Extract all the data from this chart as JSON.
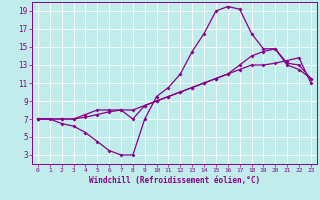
{
  "xlabel": "Windchill (Refroidissement éolien,°C)",
  "bg_color": "#c0ecec",
  "grid_color": "#ffffff",
  "line_color": "#880088",
  "xlim": [
    -0.5,
    23.5
  ],
  "ylim": [
    2,
    20
  ],
  "xticks": [
    0,
    1,
    2,
    3,
    4,
    5,
    6,
    7,
    8,
    9,
    10,
    11,
    12,
    13,
    14,
    15,
    16,
    17,
    18,
    19,
    20,
    21,
    22,
    23
  ],
  "yticks": [
    3,
    5,
    7,
    9,
    11,
    13,
    15,
    17,
    19
  ],
  "line1_x": [
    0,
    1,
    2,
    3,
    4,
    5,
    6,
    7,
    8,
    9,
    10,
    11,
    12,
    13,
    14,
    15,
    16,
    17,
    18,
    19,
    20,
    21,
    22,
    23
  ],
  "line1_y": [
    7,
    7,
    6.5,
    6.2,
    5.5,
    4.5,
    3.5,
    3,
    3,
    7,
    9.5,
    10.5,
    12.0,
    14.5,
    16.5,
    19.0,
    19.5,
    19.2,
    16.5,
    14.8,
    14.8,
    13.0,
    12.5,
    11.5
  ],
  "line2_x": [
    0,
    2,
    3,
    4,
    5,
    6,
    7,
    8,
    9,
    10,
    11,
    12,
    13,
    14,
    15,
    16,
    17,
    18,
    19,
    20,
    21,
    22,
    23
  ],
  "line2_y": [
    7,
    7,
    7,
    7.5,
    8,
    8,
    8,
    7,
    8.5,
    9,
    9.5,
    10,
    10.5,
    11,
    11.5,
    12,
    13,
    14,
    14.5,
    14.8,
    13.2,
    13.0,
    11.5
  ],
  "line3_x": [
    0,
    2,
    3,
    4,
    5,
    6,
    7,
    8,
    9,
    10,
    11,
    12,
    13,
    14,
    15,
    16,
    17,
    18,
    19,
    20,
    21,
    22,
    23
  ],
  "line3_y": [
    7,
    7,
    7,
    7.2,
    7.5,
    7.8,
    8,
    8,
    8.5,
    9,
    9.5,
    10,
    10.5,
    11,
    11.5,
    12,
    12.5,
    13,
    13.0,
    13.2,
    13.5,
    13.8,
    11
  ]
}
